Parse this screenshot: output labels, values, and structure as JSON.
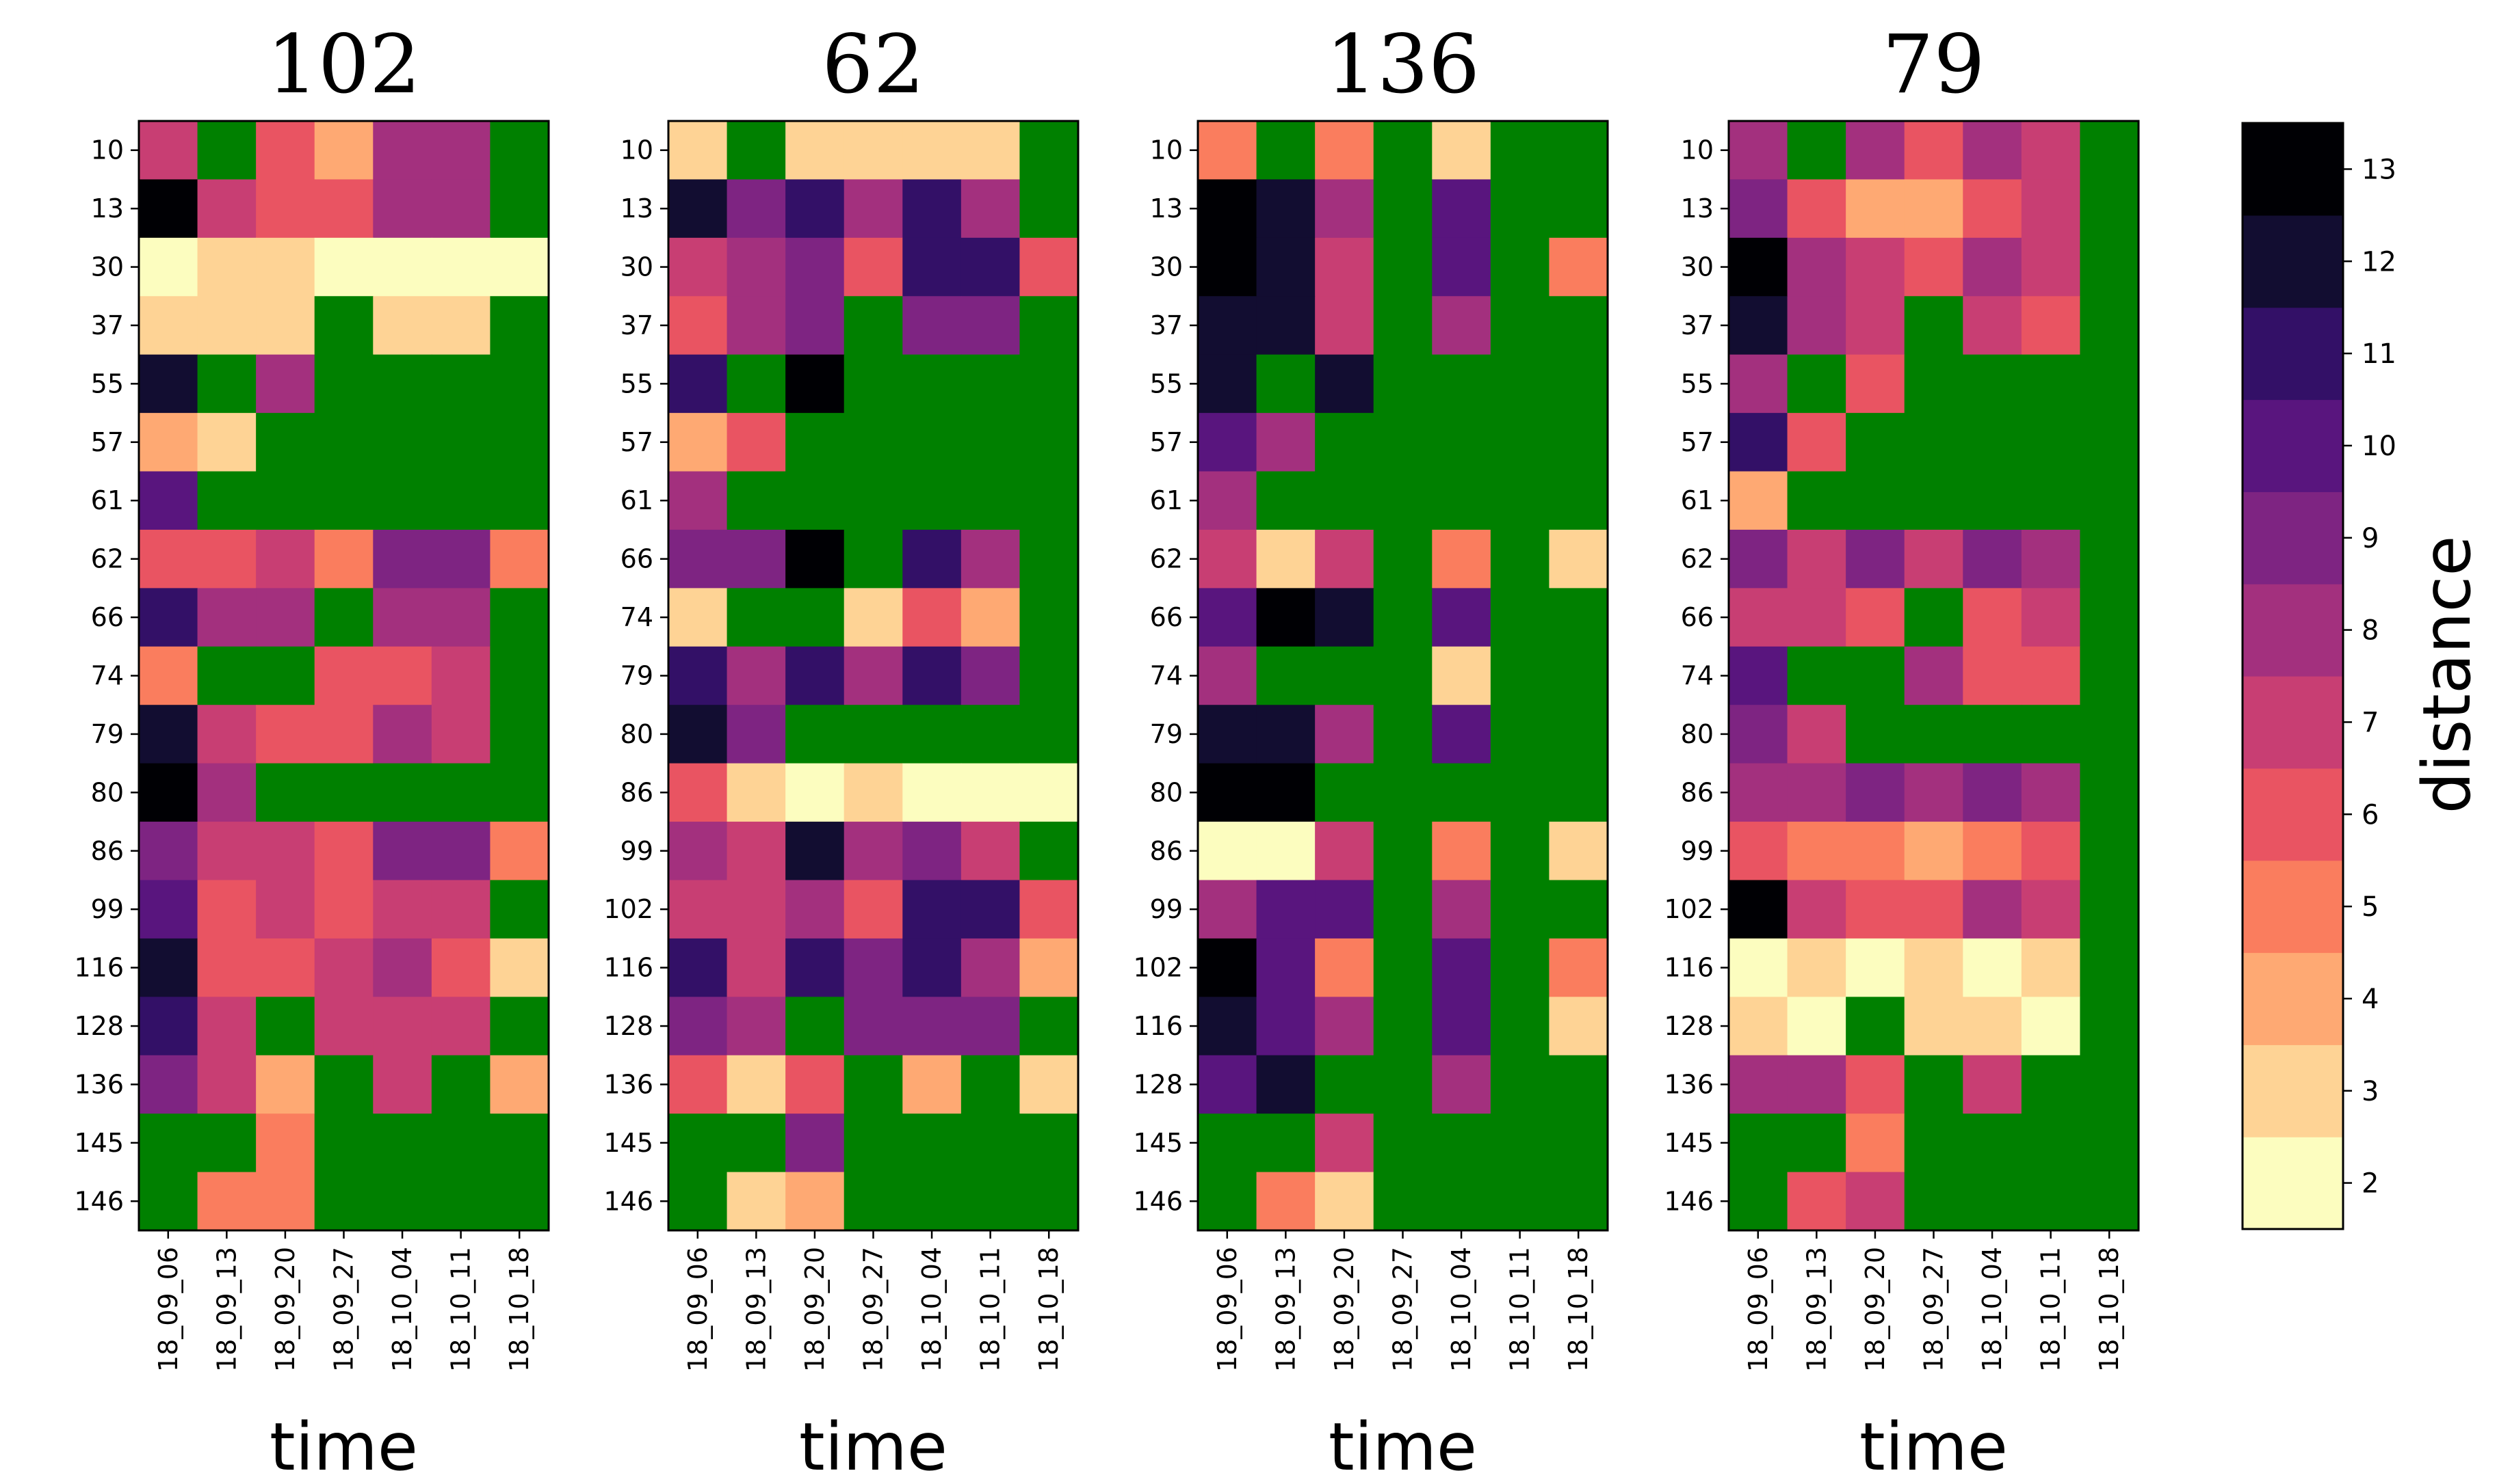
{
  "chart_data": {
    "type": "heatmap",
    "colorbar": {
      "label": "distance",
      "ticks": [
        2,
        3,
        4,
        5,
        6,
        7,
        8,
        9,
        10,
        11,
        12,
        13
      ],
      "range": [
        1.5,
        13.5
      ],
      "colors": [
        "#fcfdbf",
        "#fed395",
        "#fea973",
        "#fa7d5e",
        "#e95462",
        "#c83e73",
        "#a3307e",
        "#7e2482",
        "#59157e",
        "#331067",
        "#120d31",
        "#000004"
      ],
      "missing_color": "#008000"
    },
    "panels": [
      {
        "title": "102",
        "xlabel": "time",
        "x": [
          "18_09_06",
          "18_09_13",
          "18_09_20",
          "18_09_27",
          "18_10_04",
          "18_10_11",
          "18_10_18"
        ],
        "y": [
          "10",
          "13",
          "30",
          "37",
          "55",
          "57",
          "61",
          "62",
          "66",
          "74",
          "79",
          "80",
          "86",
          "99",
          "116",
          "128",
          "136",
          "145",
          "146"
        ],
        "values": [
          [
            7,
            null,
            6,
            4,
            8,
            8,
            null
          ],
          [
            13,
            7,
            6,
            6,
            8,
            8,
            null
          ],
          [
            2,
            3,
            3,
            2,
            2,
            2,
            2
          ],
          [
            3,
            3,
            3,
            null,
            3,
            3,
            null
          ],
          [
            12,
            null,
            8,
            null,
            null,
            null,
            null
          ],
          [
            4,
            3,
            null,
            null,
            null,
            null,
            null
          ],
          [
            10,
            null,
            null,
            null,
            null,
            null,
            null
          ],
          [
            6,
            6,
            7,
            5,
            9,
            9,
            5
          ],
          [
            11,
            8,
            8,
            null,
            8,
            8,
            null
          ],
          [
            5,
            null,
            null,
            6,
            6,
            7,
            null
          ],
          [
            12,
            7,
            6,
            6,
            8,
            7,
            null
          ],
          [
            13,
            8,
            null,
            null,
            null,
            null,
            null
          ],
          [
            9,
            7,
            7,
            6,
            9,
            9,
            5
          ],
          [
            10,
            6,
            7,
            6,
            7,
            7,
            null
          ],
          [
            12,
            6,
            6,
            7,
            8,
            6,
            3
          ],
          [
            11,
            7,
            null,
            7,
            7,
            7,
            null
          ],
          [
            9,
            7,
            4,
            null,
            7,
            null,
            4
          ],
          [
            null,
            null,
            5,
            null,
            null,
            null,
            null
          ],
          [
            null,
            5,
            5,
            null,
            null,
            null,
            null
          ]
        ]
      },
      {
        "title": "62",
        "xlabel": "time",
        "x": [
          "18_09_06",
          "18_09_13",
          "18_09_20",
          "18_09_27",
          "18_10_04",
          "18_10_11",
          "18_10_18"
        ],
        "y": [
          "10",
          "13",
          "30",
          "37",
          "55",
          "57",
          "61",
          "66",
          "74",
          "79",
          "80",
          "86",
          "99",
          "102",
          "116",
          "128",
          "136",
          "145",
          "146"
        ],
        "values": [
          [
            3,
            null,
            3,
            3,
            3,
            3,
            null
          ],
          [
            12,
            9,
            11,
            8,
            11,
            8,
            null
          ],
          [
            7,
            8,
            9,
            6,
            11,
            11,
            6
          ],
          [
            6,
            8,
            9,
            null,
            9,
            9,
            null
          ],
          [
            11,
            null,
            13,
            null,
            null,
            null,
            null
          ],
          [
            4,
            6,
            null,
            null,
            null,
            null,
            null
          ],
          [
            8,
            null,
            null,
            null,
            null,
            null,
            null
          ],
          [
            9,
            9,
            13,
            null,
            11,
            8,
            null
          ],
          [
            3,
            null,
            null,
            3,
            6,
            4,
            null
          ],
          [
            11,
            8,
            11,
            8,
            11,
            9,
            null
          ],
          [
            12,
            9,
            null,
            null,
            null,
            null,
            null
          ],
          [
            6,
            3,
            2,
            3,
            2,
            2,
            2
          ],
          [
            8,
            7,
            12,
            8,
            9,
            7,
            null
          ],
          [
            7,
            7,
            8,
            6,
            11,
            11,
            6
          ],
          [
            11,
            7,
            11,
            9,
            11,
            8,
            4
          ],
          [
            9,
            8,
            null,
            9,
            9,
            9,
            null
          ],
          [
            6,
            3,
            6,
            null,
            4,
            null,
            3
          ],
          [
            null,
            null,
            9,
            null,
            null,
            null,
            null
          ],
          [
            null,
            3,
            4,
            null,
            null,
            null,
            null
          ]
        ]
      },
      {
        "title": "136",
        "xlabel": "time",
        "x": [
          "18_09_06",
          "18_09_13",
          "18_09_20",
          "18_09_27",
          "18_10_04",
          "18_10_11",
          "18_10_18"
        ],
        "y": [
          "10",
          "13",
          "30",
          "37",
          "55",
          "57",
          "61",
          "62",
          "66",
          "74",
          "79",
          "80",
          "86",
          "99",
          "102",
          "116",
          "128",
          "145",
          "146"
        ],
        "values": [
          [
            5,
            null,
            5,
            null,
            3,
            null,
            null
          ],
          [
            13,
            12,
            8,
            null,
            10,
            null,
            null
          ],
          [
            13,
            12,
            7,
            null,
            10,
            null,
            5
          ],
          [
            12,
            12,
            7,
            null,
            8,
            null,
            null
          ],
          [
            12,
            null,
            12,
            null,
            null,
            null,
            null
          ],
          [
            10,
            8,
            null,
            null,
            null,
            null,
            null
          ],
          [
            8,
            null,
            null,
            null,
            null,
            null,
            null
          ],
          [
            7,
            3,
            7,
            null,
            5,
            null,
            3
          ],
          [
            10,
            13,
            12,
            null,
            10,
            null,
            null
          ],
          [
            8,
            null,
            null,
            null,
            3,
            null,
            null
          ],
          [
            12,
            12,
            8,
            null,
            10,
            null,
            null
          ],
          [
            13,
            13,
            null,
            null,
            null,
            null,
            null
          ],
          [
            2,
            2,
            7,
            null,
            5,
            null,
            3
          ],
          [
            8,
            10,
            10,
            null,
            8,
            null,
            null
          ],
          [
            13,
            10,
            5,
            null,
            10,
            null,
            5
          ],
          [
            12,
            10,
            8,
            null,
            10,
            null,
            3
          ],
          [
            10,
            12,
            null,
            null,
            8,
            null,
            null
          ],
          [
            null,
            null,
            7,
            null,
            null,
            null,
            null
          ],
          [
            null,
            5,
            3,
            null,
            null,
            null,
            null
          ]
        ]
      },
      {
        "title": "79",
        "xlabel": "time",
        "x": [
          "18_09_06",
          "18_09_13",
          "18_09_20",
          "18_09_27",
          "18_10_04",
          "18_10_11",
          "18_10_18"
        ],
        "y": [
          "10",
          "13",
          "30",
          "37",
          "55",
          "57",
          "61",
          "62",
          "66",
          "74",
          "80",
          "86",
          "99",
          "102",
          "116",
          "128",
          "136",
          "145",
          "146"
        ],
        "values": [
          [
            8,
            null,
            8,
            6,
            8,
            7,
            null
          ],
          [
            9,
            6,
            4,
            4,
            6,
            7,
            null
          ],
          [
            13,
            8,
            7,
            6,
            8,
            7,
            null
          ],
          [
            12,
            8,
            7,
            null,
            7,
            6,
            null
          ],
          [
            8,
            null,
            6,
            null,
            null,
            null,
            null
          ],
          [
            11,
            6,
            null,
            null,
            null,
            null,
            null
          ],
          [
            4,
            null,
            null,
            null,
            null,
            null,
            null
          ],
          [
            9,
            7,
            9,
            7,
            9,
            8,
            null
          ],
          [
            7,
            7,
            6,
            null,
            6,
            7,
            null
          ],
          [
            10,
            null,
            null,
            8,
            6,
            6,
            null
          ],
          [
            9,
            7,
            null,
            null,
            null,
            null,
            null
          ],
          [
            8,
            8,
            9,
            8,
            9,
            8,
            null
          ],
          [
            6,
            5,
            5,
            4,
            5,
            6,
            null
          ],
          [
            13,
            7,
            6,
            6,
            8,
            7,
            null
          ],
          [
            2,
            3,
            2,
            3,
            2,
            3,
            null
          ],
          [
            3,
            2,
            null,
            3,
            3,
            2,
            null
          ],
          [
            8,
            8,
            6,
            null,
            7,
            null,
            null
          ],
          [
            null,
            null,
            5,
            null,
            null,
            null,
            null
          ],
          [
            null,
            6,
            7,
            null,
            null,
            null,
            null
          ]
        ]
      }
    ]
  }
}
